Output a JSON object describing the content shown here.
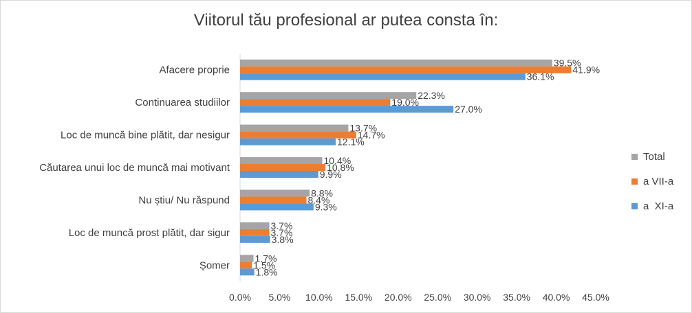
{
  "chart_data": {
    "type": "bar",
    "orientation": "horizontal",
    "title": "Viitorul tău profesional ar putea consta în:",
    "categories": [
      "Afacere proprie",
      "Continuarea studiilor",
      "Loc de muncă bine plătit, dar nesigur",
      "Căutarea unui loc de muncă mai motivant",
      "Nu știu/ Nu răspund",
      "Loc de muncă prost plătit, dar sigur",
      "Șomer"
    ],
    "series": [
      {
        "name": "Total",
        "color": "#a5a5a5",
        "values": [
          39.5,
          22.3,
          13.7,
          10.4,
          8.8,
          3.7,
          1.7
        ],
        "labels": [
          "39.5%",
          "22.3%",
          "13.7%",
          "10.4%",
          "8.8%",
          "3.7%",
          "1.7%"
        ]
      },
      {
        "name": "a VII-a",
        "color": "#ed7d31",
        "values": [
          41.9,
          19.0,
          14.7,
          10.8,
          8.4,
          3.7,
          1.5
        ],
        "labels": [
          "41.9%",
          "19.0%",
          "14.7%",
          "10.8%",
          "8.4%",
          "3.7%",
          "1.5%"
        ]
      },
      {
        "name": "a  XI-a",
        "color": "#5b9bd5",
        "values": [
          36.1,
          27.0,
          12.1,
          9.9,
          9.3,
          3.8,
          1.8
        ],
        "labels": [
          "36.1%",
          "27.0%",
          "12.1%",
          "9.9%",
          "9.3%",
          "3.8%",
          "1.8%"
        ]
      }
    ],
    "xlim": [
      0,
      45
    ],
    "xticks": [
      "0.0%",
      "5.0%",
      "10.0%",
      "15.0%",
      "20.0%",
      "25.0%",
      "30.0%",
      "35.0%",
      "40.0%",
      "45.0%"
    ],
    "legend_position": "right",
    "grid": false
  }
}
